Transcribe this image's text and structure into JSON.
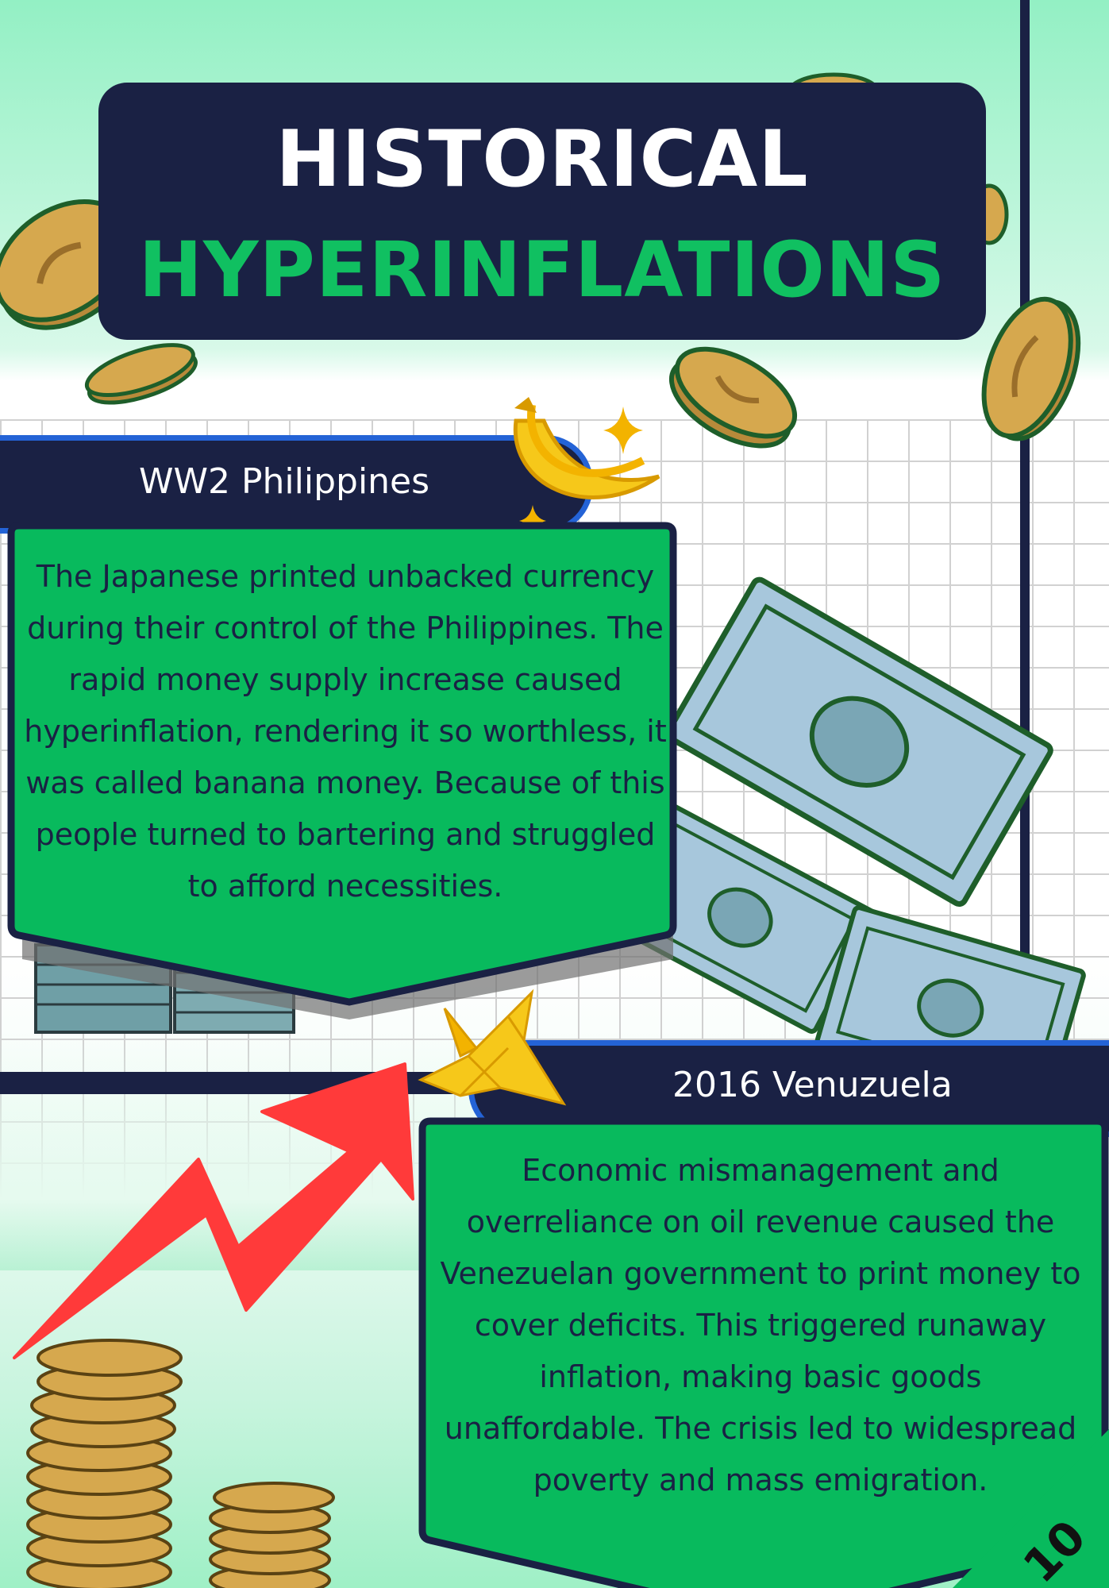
{
  "title": {
    "line1": "HISTORICAL",
    "line2": "HYPERINFLATIONS"
  },
  "sections": [
    {
      "heading": "WW2 Philippines",
      "body": "The Japanese printed unbacked currency during their control of the Philippines. The rapid money supply increase caused hyperinflation, rendering it so worthless, it was called banana money. Because of this people turned to bartering and struggled to afford necessities."
    },
    {
      "heading": "2016 Venuzuela",
      "body": "Economic mismanagement and overreliance on oil revenue caused the Venezuelan government to print money to cover deficits. This triggered runaway inflation, making basic goods unaffordable. The crisis led to widespread poverty and mass emigration."
    }
  ],
  "page_number": "10",
  "colors": {
    "navy": "#1a2144",
    "green": "#10c061",
    "card_green": "#08ba5d",
    "blue_border": "#2463d6",
    "arrow_red": "#ff3a3a",
    "coin": "#d6a84e",
    "bill": "#a7c7dc"
  },
  "icons": [
    "coin-icon",
    "banana-icon",
    "sparkle-icon",
    "dollar-bill-icon",
    "paper-crane-icon",
    "rising-arrow-icon",
    "coin-stack-icon",
    "cash-bundle-icon"
  ]
}
